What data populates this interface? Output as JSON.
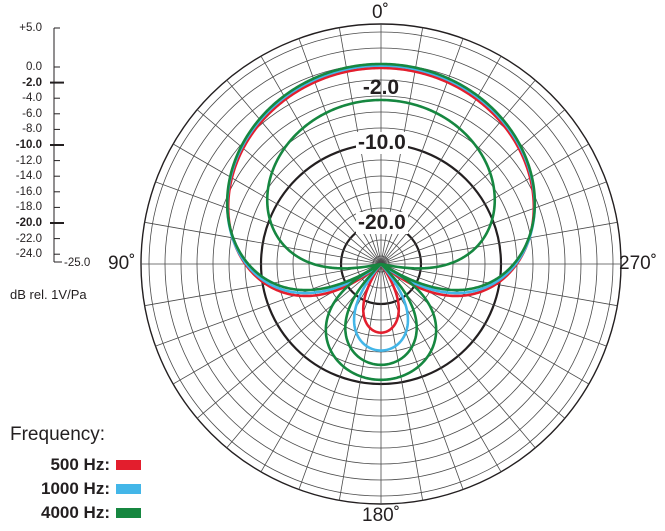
{
  "chart_data": {
    "type": "polar",
    "angle_labels": [
      "0˚",
      "90˚",
      "180˚",
      "270˚"
    ],
    "scale_axis_label": "dB rel. 1V/Pa",
    "scale_ticks": [
      "+5.0",
      "0.0",
      "-2.0",
      "-4.0",
      "-6.0",
      "-8.0",
      "-10.0",
      "-12.0",
      "-14.0",
      "-16.0",
      "-18.0",
      "-20.0",
      "-22.0",
      "-24.0"
    ],
    "scale_min_label": "-25.0",
    "ring_labels": [
      "-2.0",
      "-10.0",
      "-20.0"
    ],
    "r_range_db": [
      -25,
      5
    ],
    "legend_title": "Frequency:",
    "series": [
      {
        "name": "500 Hz:",
        "color": "#e31e2d",
        "pattern": "hypercardioid",
        "a": 0.42,
        "scale_db": -0.5
      },
      {
        "name": "1000 Hz:",
        "color": "#43b6e8",
        "pattern": "hypercardioid",
        "a": 0.4,
        "scale_db": -0.2
      },
      {
        "name": "4000 Hz:",
        "color": "#168740",
        "pattern": "hypercardioid",
        "a": 0.38,
        "scale_db": 0.0
      },
      {
        "name": "",
        "color": "#168740",
        "pattern": "hypercardioid",
        "a": 0.25,
        "scale_db": -4.5
      }
    ]
  }
}
